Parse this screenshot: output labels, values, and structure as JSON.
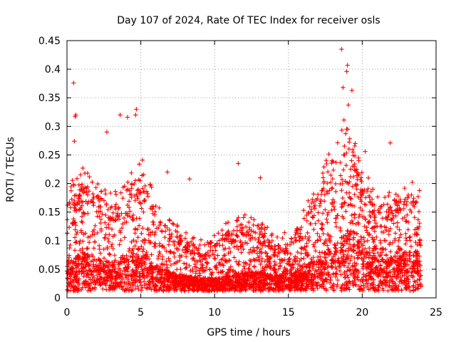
{
  "chart_data": {
    "type": "scatter",
    "title": "Day 107 of 2024, Rate Of TEC Index for receiver osls",
    "xlabel": "GPS time / hours",
    "ylabel": "ROTI / TECUs",
    "xlim": [
      0,
      25
    ],
    "ylim": [
      0,
      0.45
    ],
    "xticks": [
      "0",
      "5",
      "10",
      "15",
      "20",
      "25"
    ],
    "yticks": [
      "0",
      "0.05",
      "0.1",
      "0.15",
      "0.2",
      "0.25",
      "0.3",
      "0.35",
      "0.4",
      "0.45"
    ],
    "grid": true,
    "marker": "plus",
    "color": "#ff0000",
    "x_data_range": [
      0,
      24
    ],
    "notable_points": [
      {
        "x": 0.45,
        "y": 0.376
      },
      {
        "x": 0.6,
        "y": 0.32
      },
      {
        "x": 0.55,
        "y": 0.317
      },
      {
        "x": 0.5,
        "y": 0.274
      },
      {
        "x": 2.7,
        "y": 0.29
      },
      {
        "x": 3.6,
        "y": 0.32
      },
      {
        "x": 4.1,
        "y": 0.316
      },
      {
        "x": 4.7,
        "y": 0.33
      },
      {
        "x": 4.65,
        "y": 0.32
      },
      {
        "x": 6.8,
        "y": 0.22
      },
      {
        "x": 8.3,
        "y": 0.208
      },
      {
        "x": 11.6,
        "y": 0.235
      },
      {
        "x": 13.1,
        "y": 0.21
      },
      {
        "x": 18.6,
        "y": 0.435
      },
      {
        "x": 19.0,
        "y": 0.407
      },
      {
        "x": 18.95,
        "y": 0.396
      },
      {
        "x": 19.3,
        "y": 0.363
      },
      {
        "x": 18.7,
        "y": 0.368
      },
      {
        "x": 21.9,
        "y": 0.271
      },
      {
        "x": 20.2,
        "y": 0.256
      }
    ],
    "envelope": {
      "hours": [
        0,
        1,
        2,
        3,
        4,
        5,
        6,
        7,
        8,
        9,
        10,
        11,
        12,
        13,
        14,
        15,
        16,
        17,
        18,
        19,
        20,
        21,
        22,
        23,
        24
      ],
      "median": [
        0.05,
        0.07,
        0.06,
        0.05,
        0.06,
        0.08,
        0.05,
        0.04,
        0.035,
        0.03,
        0.03,
        0.035,
        0.04,
        0.04,
        0.035,
        0.035,
        0.05,
        0.06,
        0.08,
        0.1,
        0.08,
        0.06,
        0.06,
        0.07,
        0.07
      ],
      "upper": [
        0.17,
        0.2,
        0.18,
        0.16,
        0.18,
        0.22,
        0.15,
        0.12,
        0.1,
        0.09,
        0.1,
        0.12,
        0.13,
        0.12,
        0.1,
        0.1,
        0.14,
        0.18,
        0.24,
        0.3,
        0.2,
        0.16,
        0.17,
        0.18,
        0.18
      ],
      "density_per_hour": 160
    }
  }
}
